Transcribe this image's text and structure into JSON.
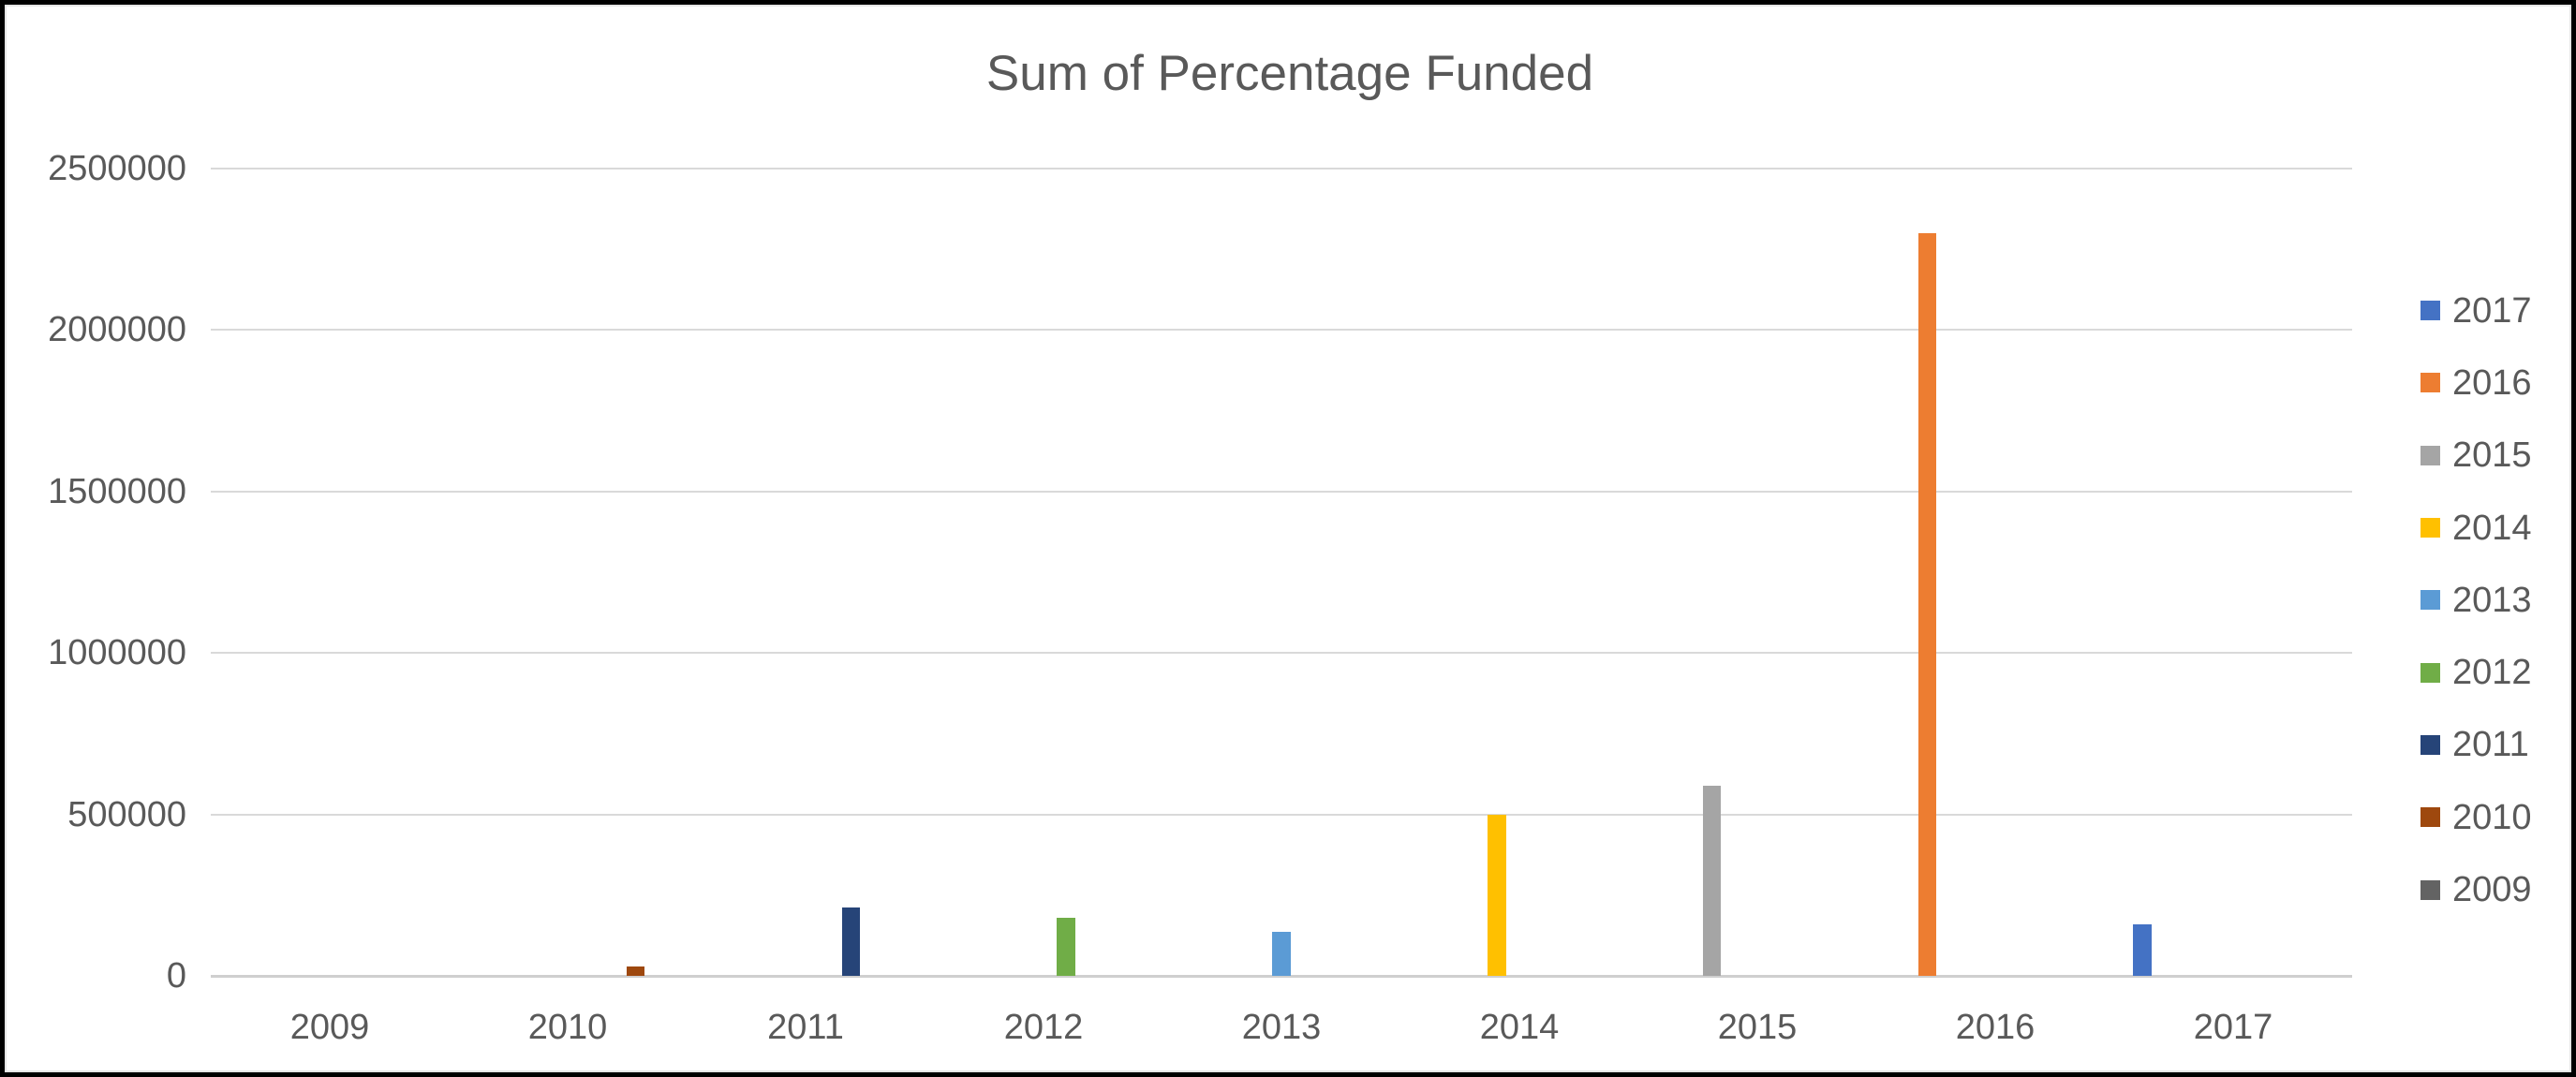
{
  "chart_data": {
    "type": "bar",
    "title": "Sum of Percentage Funded",
    "categories": [
      "2009",
      "2010",
      "2011",
      "2012",
      "2013",
      "2014",
      "2015",
      "2016",
      "2017"
    ],
    "series": [
      {
        "name": "2017",
        "color": "#4472C4",
        "values": [
          0,
          0,
          0,
          0,
          0,
          0,
          0,
          0,
          160000
        ]
      },
      {
        "name": "2016",
        "color": "#ED7D31",
        "values": [
          0,
          0,
          0,
          0,
          0,
          0,
          0,
          2300000,
          0
        ]
      },
      {
        "name": "2015",
        "color": "#A5A5A5",
        "values": [
          0,
          0,
          0,
          0,
          0,
          0,
          590000,
          0,
          0
        ]
      },
      {
        "name": "2014",
        "color": "#FFC000",
        "values": [
          0,
          0,
          0,
          0,
          0,
          500000,
          0,
          0,
          0
        ]
      },
      {
        "name": "2013",
        "color": "#5B9BD5",
        "values": [
          0,
          0,
          0,
          0,
          135000,
          0,
          0,
          0,
          0
        ]
      },
      {
        "name": "2012",
        "color": "#70AD47",
        "values": [
          0,
          0,
          0,
          180000,
          0,
          0,
          0,
          0,
          0
        ]
      },
      {
        "name": "2011",
        "color": "#264478",
        "values": [
          0,
          0,
          212000,
          0,
          0,
          0,
          0,
          0,
          0
        ]
      },
      {
        "name": "2010",
        "color": "#9E480E",
        "values": [
          0,
          30000,
          0,
          0,
          0,
          0,
          0,
          0,
          0
        ]
      },
      {
        "name": "2009",
        "color": "#636363",
        "values": [
          0,
          0,
          0,
          0,
          0,
          0,
          0,
          0,
          0
        ]
      }
    ],
    "ylim": [
      0,
      2500000
    ],
    "ytick_interval": 500000,
    "ytick_labels": [
      "2500000",
      "2000000",
      "1500000",
      "1000000",
      "500000",
      "0"
    ],
    "grid": true,
    "legend_position": "right",
    "legend_entries": [
      "2017",
      "2016",
      "2015",
      "2014",
      "2013",
      "2012",
      "2011",
      "2010",
      "2009"
    ]
  },
  "styles": {
    "text_color": "#595959",
    "gridline_color": "#D9D9D9",
    "axis_color": "#CFCFCF",
    "frame_color": "#000000"
  }
}
